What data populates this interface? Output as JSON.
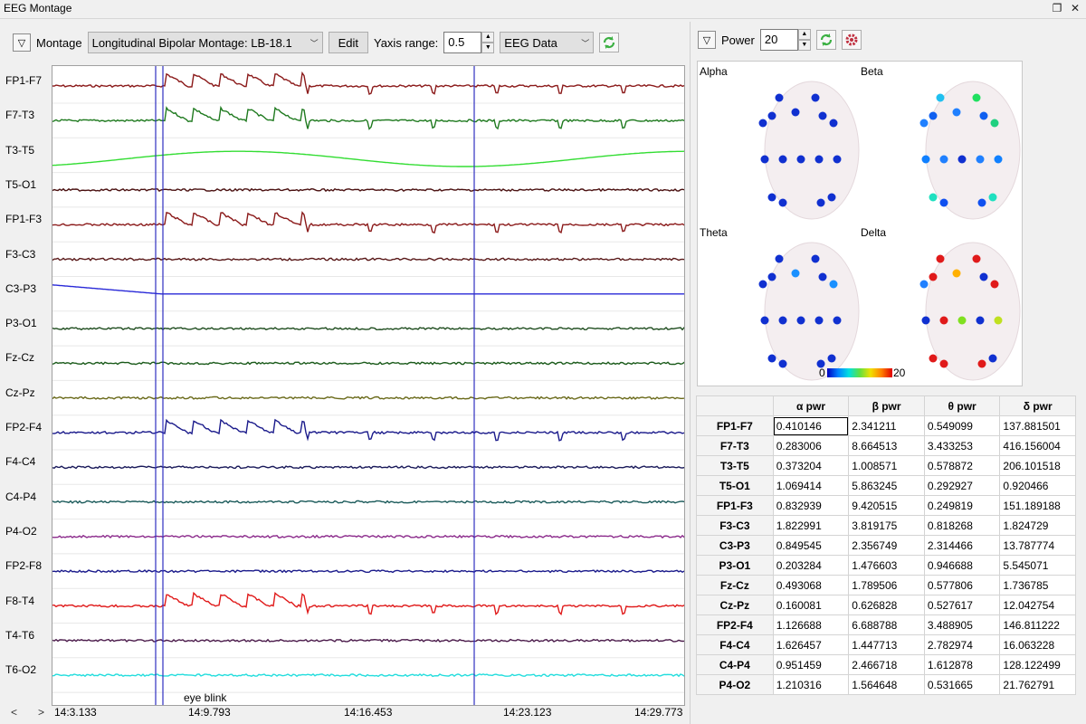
{
  "window": {
    "title": "EEG Montage"
  },
  "toolbar": {
    "montage_label": "Montage",
    "montage_value": "Longitudinal Bipolar Montage: LB-18.1",
    "edit_label": "Edit",
    "yaxis_label": "Yaxis range:",
    "yaxis_value": "0.5",
    "source_value": "EEG Data"
  },
  "channels": [
    {
      "name": "FP1-F7",
      "color": "#8b1a1a"
    },
    {
      "name": "F7-T3",
      "color": "#1f7a1f"
    },
    {
      "name": "T3-T5",
      "color": "#33dd33"
    },
    {
      "name": "T5-O1",
      "color": "#4a1010"
    },
    {
      "name": "FP1-F3",
      "color": "#8b1a1a"
    },
    {
      "name": "F3-C3",
      "color": "#5a1a1a"
    },
    {
      "name": "C3-P3",
      "color": "#2a2ad8"
    },
    {
      "name": "P3-O1",
      "color": "#1f4d1f"
    },
    {
      "name": "Fz-Cz",
      "color": "#1a5a1a"
    },
    {
      "name": "Cz-Pz",
      "color": "#6a6a1a"
    },
    {
      "name": "FP2-F4",
      "color": "#1a1a8b"
    },
    {
      "name": "F4-C4",
      "color": "#1a1a5a"
    },
    {
      "name": "C4-P4",
      "color": "#1a5a5a"
    },
    {
      "name": "P4-O2",
      "color": "#8b2a8b"
    },
    {
      "name": "FP2-F8",
      "color": "#1a1a8b"
    },
    {
      "name": "F8-T4",
      "color": "#e01a1a"
    },
    {
      "name": "T4-T6",
      "color": "#4a1a4a"
    },
    {
      "name": "T6-O2",
      "color": "#22dddd"
    }
  ],
  "time_axis": {
    "ticks": [
      "14:3.133",
      "14:9.793",
      "14:16.453",
      "14:23.123",
      "14:29.773"
    ],
    "prev_label": "<",
    "next_label": ">",
    "annotation": "eye blink"
  },
  "power_panel": {
    "power_label": "Power",
    "power_value": "20",
    "maps": [
      {
        "title": "Alpha",
        "colors": [
          "#1030d0",
          "#1030d0",
          "#1030d0",
          "#1030d0",
          "#1030d0",
          "#1030d0",
          "#1030d0",
          "#1030d0",
          "#1030d0",
          "#1030d0",
          "#1030d0",
          "#1030d0",
          "#1030d0",
          "#1030d0",
          "#1030d0",
          "#1030d0",
          "#2080ff",
          "#1030d0",
          "#1030d0"
        ]
      },
      {
        "title": "Beta",
        "colors": [
          "#20c0f0",
          "#20e060",
          "#1060f0",
          "#2080ff",
          "#1060f0",
          "#2080ff",
          "#20d080",
          "#1080ff",
          "#2080ff",
          "#1030d0",
          "#2080ff",
          "#1080ff",
          "#20e0c0",
          "#1050f0",
          "#1050f0",
          "#20e0c0",
          "#20c0f0",
          "#1060f0",
          "#1060f0"
        ]
      },
      {
        "title": "Theta",
        "colors": [
          "#1030d0",
          "#1030d0",
          "#1030d0",
          "#1a90ff",
          "#1030d0",
          "#1030d0",
          "#1a90ff",
          "#1030d0",
          "#1030d0",
          "#1030d0",
          "#1030d0",
          "#1030d0",
          "#1030d0",
          "#1030d0",
          "#1030d0",
          "#1030d0",
          "#1030d0",
          "#1030d0",
          "#1030d0"
        ]
      },
      {
        "title": "Delta",
        "colors": [
          "#e01a1a",
          "#e01a1a",
          "#e01a1a",
          "#ffb000",
          "#1030d0",
          "#2080ff",
          "#e01a1a",
          "#1030d0",
          "#e01a1a",
          "#80e020",
          "#1030d0",
          "#c0e020",
          "#e01a1a",
          "#e01a1a",
          "#e01a1a",
          "#1030d0",
          "#20e0c0",
          "#1030d0",
          "#1030d0"
        ]
      }
    ],
    "scale_min": "0",
    "scale_max": "20",
    "table_headers": [
      "α pwr",
      "β pwr",
      "θ pwr",
      "δ pwr"
    ],
    "table_rows": [
      {
        "ch": "FP1-F7",
        "vals": [
          "0.410146",
          "2.341211",
          "0.549099",
          "137.881501"
        ]
      },
      {
        "ch": "F7-T3",
        "vals": [
          "0.283006",
          "8.664513",
          "3.433253",
          "416.156004"
        ]
      },
      {
        "ch": "T3-T5",
        "vals": [
          "0.373204",
          "1.008571",
          "0.578872",
          "206.101518"
        ]
      },
      {
        "ch": "T5-O1",
        "vals": [
          "1.069414",
          "5.863245",
          "0.292927",
          "0.920466"
        ]
      },
      {
        "ch": "FP1-F3",
        "vals": [
          "0.832939",
          "9.420515",
          "0.249819",
          "151.189188"
        ]
      },
      {
        "ch": "F3-C3",
        "vals": [
          "1.822991",
          "3.819175",
          "0.818268",
          "1.824729"
        ]
      },
      {
        "ch": "C3-P3",
        "vals": [
          "0.849545",
          "2.356749",
          "2.314466",
          "13.787774"
        ]
      },
      {
        "ch": "P3-O1",
        "vals": [
          "0.203284",
          "1.476603",
          "0.946688",
          "5.545071"
        ]
      },
      {
        "ch": "Fz-Cz",
        "vals": [
          "0.493068",
          "1.789506",
          "0.577806",
          "1.736785"
        ]
      },
      {
        "ch": "Cz-Pz",
        "vals": [
          "0.160081",
          "0.626828",
          "0.527617",
          "12.042754"
        ]
      },
      {
        "ch": "FP2-F4",
        "vals": [
          "1.126688",
          "6.688788",
          "3.488905",
          "146.811222"
        ]
      },
      {
        "ch": "F4-C4",
        "vals": [
          "1.626457",
          "1.447713",
          "2.782974",
          "16.063228"
        ]
      },
      {
        "ch": "C4-P4",
        "vals": [
          "0.951459",
          "2.466718",
          "1.612878",
          "128.122499"
        ]
      },
      {
        "ch": "P4-O2",
        "vals": [
          "1.210316",
          "1.564648",
          "0.531665",
          "21.762791"
        ]
      }
    ]
  }
}
